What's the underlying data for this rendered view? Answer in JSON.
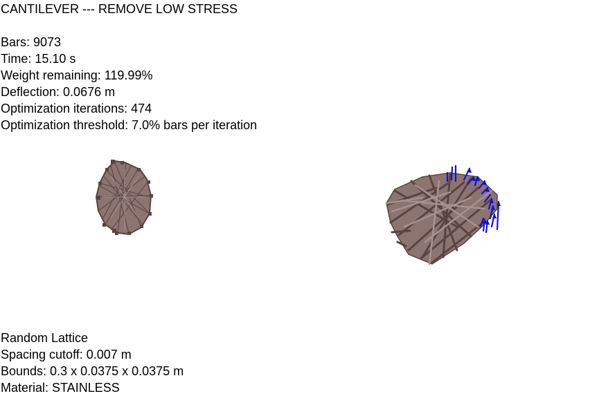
{
  "title": "CANTILEVER --- REMOVE LOW STRESS",
  "stats": {
    "bars": "Bars: 9073",
    "time": "Time: 15.10 s",
    "weight": "Weight remaining: 119.99%",
    "deflection": "Deflection: 0.0676 m",
    "iterations": "Optimization iterations: 474",
    "threshold": "Optimization threshold: 7.0% bars per iteration"
  },
  "lattice": {
    "type": "Random Lattice",
    "spacing": "Spacing cutoff: 0.007 m",
    "bounds": "Bounds: 0.3 x 0.0375 x 0.0375 m",
    "material": "Material: STAINLESS"
  },
  "colors": {
    "bar_fill": "#8c7470",
    "bar_dark": "#5a4442",
    "bar_light": "#a89290",
    "load_arrow": "#1010e0",
    "background": "#ffffff"
  }
}
